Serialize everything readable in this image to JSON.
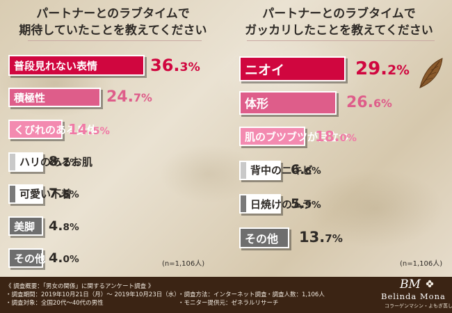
{
  "charts_header": {
    "left_title": [
      "パートナーとのラブタイムで",
      "期待していたことを教えてください"
    ],
    "right_title": [
      "パートナーとのラブタイムで",
      "ガッカリしたことを教えてください"
    ]
  },
  "chart_data": [
    {
      "type": "bar",
      "title": "パートナーとのラブタイムで期待していたことを教えてください",
      "categories": [
        "普段見れない表情",
        "積極性",
        "くびれのある身体",
        "ハリのあるお肌",
        "可愛い下着",
        "美脚",
        "その他"
      ],
      "values": [
        36.3,
        24.7,
        14.5,
        8.2,
        7.5,
        4.8,
        4.0
      ],
      "value_labels": [
        [
          "36.",
          "3%"
        ],
        [
          "24.",
          "7%"
        ],
        [
          "14.",
          "5%"
        ],
        [
          "8.",
          "2%"
        ],
        [
          "7.",
          "5%"
        ],
        [
          "4.",
          "8%"
        ],
        [
          "4.",
          "0%"
        ]
      ],
      "unit": "%",
      "note": "(n=1,106人)"
    },
    {
      "type": "bar",
      "title": "パートナーとのラブタイムでガッカリしたことを教えてください",
      "categories": [
        "ニオイ",
        "体形",
        "肌のブツブツが目立つ",
        "背中のニキビ",
        "日焼けのムラ",
        "その他"
      ],
      "values": [
        29.2,
        26.6,
        18.0,
        6.6,
        5.9,
        13.7
      ],
      "value_labels": [
        [
          "29.",
          "2%"
        ],
        [
          "26.",
          "6%"
        ],
        [
          "18.",
          "0%"
        ],
        [
          "6.",
          "6%"
        ],
        [
          "5.",
          "9%"
        ],
        [
          "13.",
          "7%"
        ]
      ],
      "unit": "%",
      "note": "(n=1,106人)"
    }
  ],
  "footer": {
    "heading": "《 調査概要：「男女の関係」に関するアンケート調査 》",
    "period": "・調査期間：2019年10月21日（月）～ 2019年10月23日（水）",
    "target": "・調査対象：全国20代～40代の男性",
    "method": "・調査方法：インターネット調査",
    "count": "・調査人数：1,106人",
    "provider": "・モニター提供元：ゼネラルリサーチ",
    "logo": "BM",
    "brand": "Belinda Mona",
    "brand_sub": "コラーゲンマシン・よもぎ蒸し"
  },
  "colors": {
    "accent_red": "#d0063f",
    "pink": "#de5d8a",
    "light_pink": "#f38ab0",
    "gray": "#6e6e6e",
    "footer_bg": "#3b2414"
  },
  "icons": [
    "leaf-icon",
    "flower-icon"
  ]
}
